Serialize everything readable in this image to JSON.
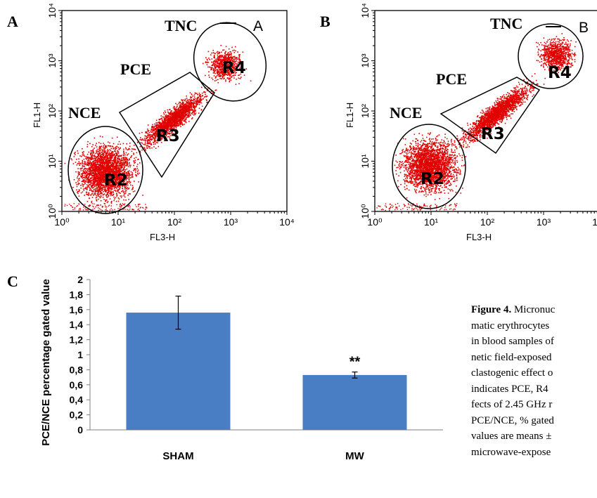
{
  "figure": {
    "panel_a_label": "A",
    "panel_b_label": "B",
    "panel_c_label": "C",
    "caption": {
      "title": "Figure 4.",
      "line1_rest": " Micronuc",
      "lines": [
        "matic erythrocytes",
        "in blood samples of",
        "netic field-exposed",
        "clastogenic effect o",
        "indicates PCE, R4",
        "fects of 2.45 GHz r",
        "PCE/NCE, % gated",
        "values are means ±",
        "microwave-expose"
      ]
    }
  },
  "flow_plots": [
    {
      "corner_tag": "A",
      "x_label": "FL3-H",
      "y_label": "FL1-H",
      "tick_labels": [
        "10⁰",
        "10¹",
        "10²",
        "10³",
        "10⁴"
      ],
      "gates": {
        "NCE": "NCE",
        "PCE": "PCE",
        "TNC": "TNC"
      },
      "regions": {
        "R2": "R2",
        "R3": "R3",
        "R4": "R4"
      },
      "dot_color": "#e00000"
    },
    {
      "corner_tag": "B",
      "x_label": "FL3-H",
      "y_label": "FL1-H",
      "tick_labels": [
        "10⁰",
        "10¹",
        "10²",
        "10³",
        "10⁴"
      ],
      "gates": {
        "NCE": "NCE",
        "PCE": "PCE",
        "TNC": "TNC"
      },
      "regions": {
        "R2": "R2",
        "R3": "R3",
        "R4": "R4"
      },
      "dot_color": "#e00000"
    }
  ],
  "chart_data": {
    "type": "bar",
    "categories": [
      "SHAM",
      "MW"
    ],
    "values": [
      1.56,
      0.73
    ],
    "errors": [
      0.22,
      0.04
    ],
    "annotations": [
      "",
      "**"
    ],
    "ylabel": "PCE/NCE percentage gated value",
    "ylim": [
      0,
      2
    ],
    "yticks": [
      "0",
      "0,2",
      "0,4",
      "0,6",
      "0,8",
      "1",
      "1,2",
      "1,4",
      "1,6",
      "1,8",
      "2"
    ],
    "bar_color": "#4a7ec4",
    "grid": false
  }
}
